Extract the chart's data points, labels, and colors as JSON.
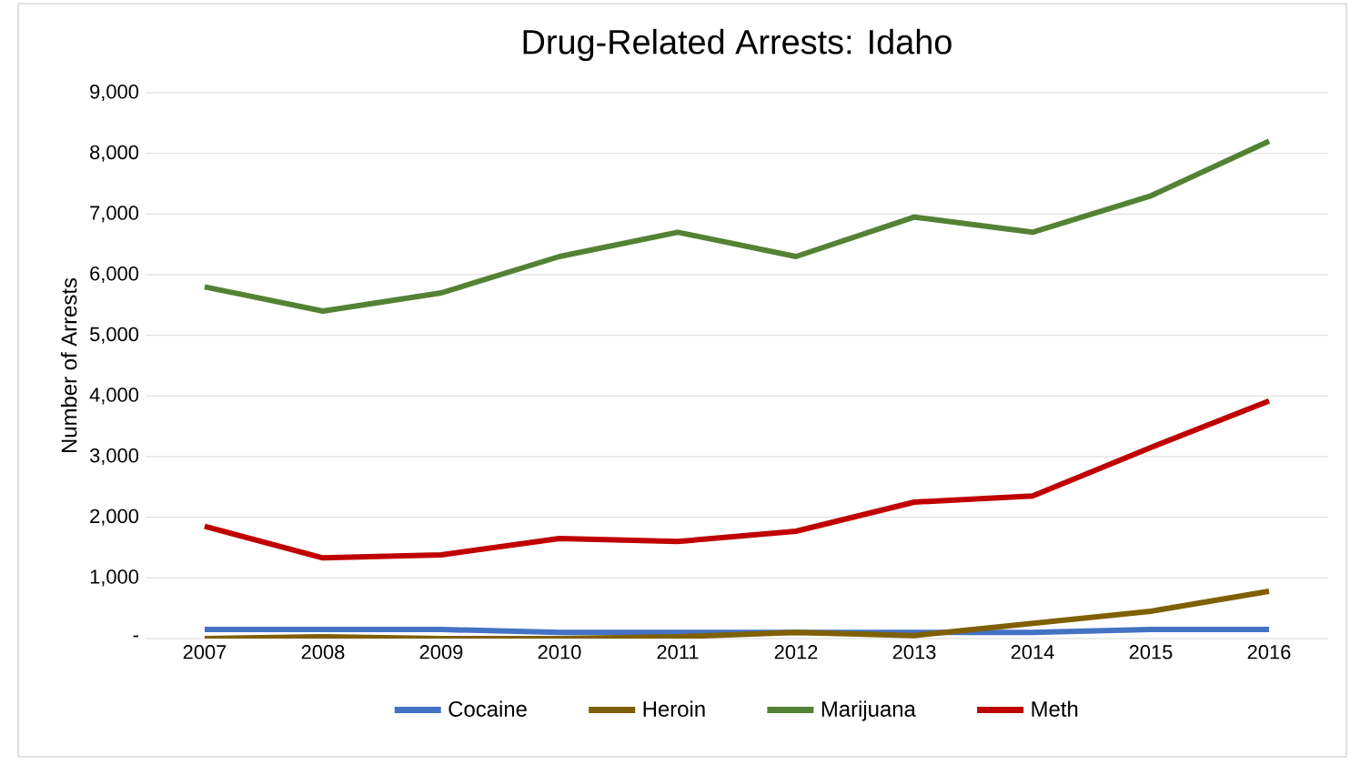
{
  "chart_data": {
    "type": "line",
    "title": "Drug-Related Arrests: Idaho",
    "ylabel": "Number  of Arrests",
    "categories": [
      "2007",
      "2008",
      "2009",
      "2010",
      "2011",
      "2012",
      "2013",
      "2014",
      "2015",
      "2016"
    ],
    "series": [
      {
        "name": "Cocaine",
        "color": "#4472c4",
        "values": [
          150,
          150,
          150,
          100,
          100,
          100,
          100,
          100,
          150,
          150
        ]
      },
      {
        "name": "Heroin",
        "color": "#7f6000",
        "values": [
          0,
          30,
          0,
          0,
          30,
          100,
          50,
          250,
          450,
          780
        ]
      },
      {
        "name": "Marijuana",
        "color": "#548235",
        "values": [
          5800,
          5400,
          5700,
          6300,
          6700,
          6300,
          6950,
          6700,
          7300,
          8200
        ]
      },
      {
        "name": "Meth",
        "color": "#c00000",
        "values": [
          1850,
          1330,
          1380,
          1650,
          1600,
          1770,
          2250,
          2350,
          3150,
          3920
        ]
      }
    ],
    "ylim": [
      0,
      9000
    ],
    "yticks": [
      {
        "value": 0,
        "label": "-"
      },
      {
        "value": 1000,
        "label": "1,000"
      },
      {
        "value": 2000,
        "label": "2,000"
      },
      {
        "value": 3000,
        "label": "3,000"
      },
      {
        "value": 4000,
        "label": "4,000"
      },
      {
        "value": 5000,
        "label": "5,000"
      },
      {
        "value": 6000,
        "label": "6,000"
      },
      {
        "value": 7000,
        "label": "7,000"
      },
      {
        "value": 8000,
        "label": "8,000"
      },
      {
        "value": 9000,
        "label": "9,000"
      }
    ],
    "grid": "y",
    "legend": "bottom",
    "marker": "none",
    "line_style": "solid"
  }
}
